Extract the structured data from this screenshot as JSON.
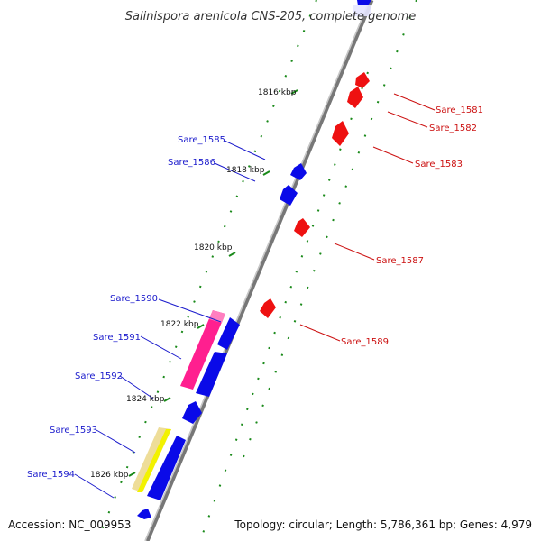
{
  "title": "Salinispora arenicola CNS-205, complete genome",
  "accession": "Accession: NC_009953",
  "topology": "Topology: circular; Length: 5,786,361 bp; Genes: 4,979",
  "kbp_ticks": [
    "1816 kbp",
    "1818 kbp",
    "1820 kbp",
    "1822 kbp",
    "1824 kbp",
    "1826 kbp"
  ],
  "genes_reverse": [
    {
      "label": "Sare_1585"
    },
    {
      "label": "Sare_1586"
    },
    {
      "label": "Sare_1590"
    },
    {
      "label": "Sare_1591"
    },
    {
      "label": "Sare_1592"
    },
    {
      "label": "Sare_1593"
    },
    {
      "label": "Sare_1594"
    }
  ],
  "genes_forward": [
    {
      "label": "Sare_1581"
    },
    {
      "label": "Sare_1582"
    },
    {
      "label": "Sare_1583"
    },
    {
      "label": "Sare_1587"
    },
    {
      "label": "Sare_1589"
    }
  ],
  "colors": {
    "reverse_strand": "#0a0ae8",
    "forward_strand": "#ee1111",
    "backbone": "#777777",
    "tick_green": "#1a8a1a",
    "rna_magenta": "#ff1f8f",
    "misc_yellow": "#f2f200",
    "misc_tan": "#eedd99"
  }
}
